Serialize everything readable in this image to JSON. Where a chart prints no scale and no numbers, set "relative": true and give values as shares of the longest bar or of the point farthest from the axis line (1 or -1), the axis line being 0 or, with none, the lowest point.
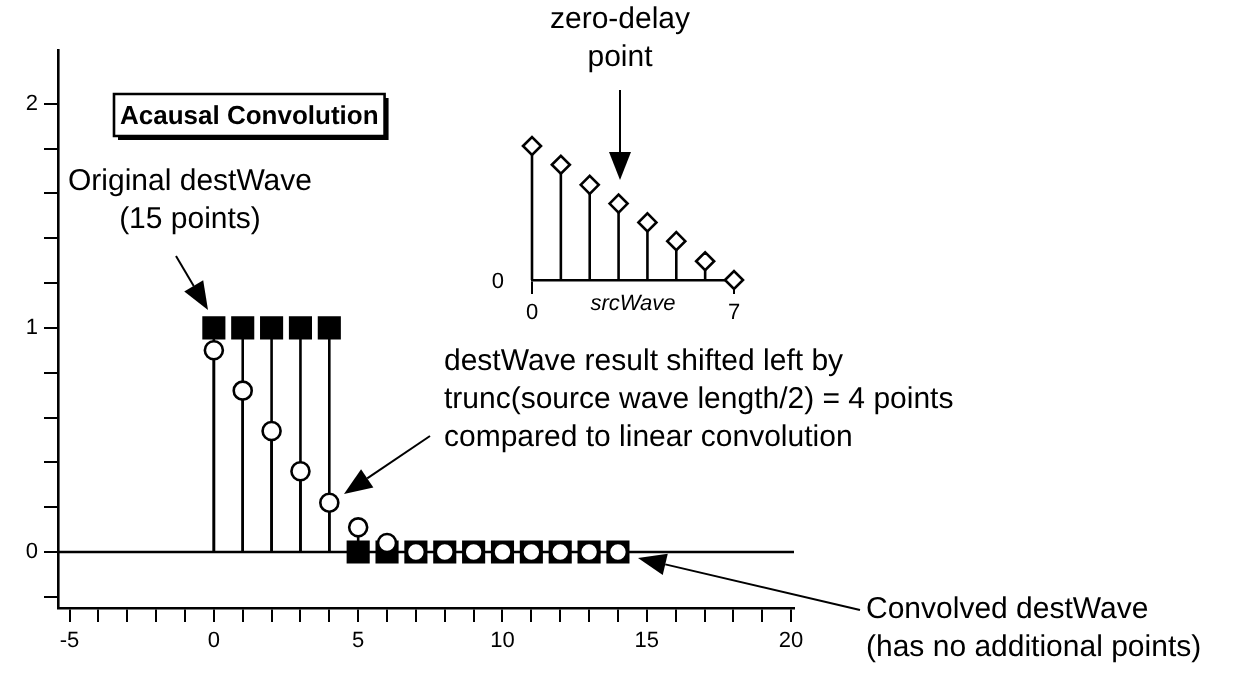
{
  "chart_data": [
    {
      "type": "lollipop",
      "title": "Acausal Convolution",
      "x": [
        0,
        1,
        2,
        3,
        4,
        5,
        6,
        7,
        8,
        9,
        10,
        11,
        12,
        13,
        14
      ],
      "series": [
        {
          "color": "#000000",
          "marker": "square",
          "values": [
            1,
            1,
            1,
            1,
            1,
            0,
            0,
            0,
            0,
            0,
            0,
            0,
            0,
            0,
            0
          ]
        },
        {
          "color": "#000000",
          "marker": "circle",
          "values": [
            0.9,
            0.72,
            0.54,
            0.36,
            0.22,
            0.11,
            0.04,
            0,
            0,
            0,
            0,
            0,
            0,
            0,
            0
          ]
        }
      ],
      "xlim": [
        -5.4,
        20.1
      ],
      "ylim": [
        -0.25,
        2.24
      ],
      "xticks": [
        -5,
        {
          "value": -4,
          "label": null
        },
        {
          "value": -3,
          "label": null
        },
        {
          "value": -2,
          "label": null
        },
        {
          "value": -1,
          "label": null
        },
        0,
        {
          "value": 1,
          "label": null
        },
        {
          "value": 2,
          "label": null
        },
        {
          "value": 3,
          "label": null
        },
        {
          "value": 4,
          "label": null
        },
        5,
        {
          "value": 6,
          "label": null
        },
        {
          "value": 7,
          "label": null
        },
        {
          "value": 8,
          "label": null
        },
        {
          "value": 9,
          "label": null
        },
        10,
        {
          "value": 11,
          "label": null
        },
        {
          "value": 12,
          "label": null
        },
        {
          "value": 13,
          "label": null
        },
        {
          "value": 14,
          "label": null
        },
        15,
        {
          "value": 16,
          "label": null
        },
        {
          "value": 17,
          "label": null
        },
        {
          "value": 18,
          "label": null
        },
        {
          "value": 19,
          "label": null
        },
        20
      ],
      "yticks": [
        {
          "value": -0.2,
          "label": null
        },
        0,
        {
          "value": 0.2,
          "label": null
        },
        {
          "value": 0.4,
          "label": null
        },
        {
          "value": 0.6,
          "label": null
        },
        {
          "value": 0.8,
          "label": null
        },
        1,
        {
          "value": 1.2,
          "label": null
        },
        {
          "value": 1.4,
          "label": null
        },
        {
          "value": 1.6,
          "label": null
        },
        {
          "value": 1.8,
          "label": null
        },
        2
      ],
      "ref_lines": [
        {
          "axis": "y",
          "value": 0
        }
      ],
      "annotations": [
        "Original destWave\n(15 points)",
        "destWave result shifted left by\ntrunc(source wave length/2) = 4 points\ncompared to linear convolution",
        "Convolved destWave\n(has no additional points)"
      ]
    },
    {
      "type": "lollipop",
      "relative": true,
      "xlabel": "srcWave",
      "x": [
        0,
        1,
        2,
        3,
        4,
        5,
        6,
        7
      ],
      "series": [
        {
          "color": "#000000",
          "marker": "diamond",
          "values": [
            1,
            0.86,
            0.71,
            0.57,
            0.43,
            0.29,
            0.14,
            0
          ]
        }
      ],
      "xlim": [
        0,
        7
      ],
      "xticks": [
        0,
        7
      ],
      "annotations": [
        "zero-delay\npoint",
        "0"
      ]
    }
  ]
}
